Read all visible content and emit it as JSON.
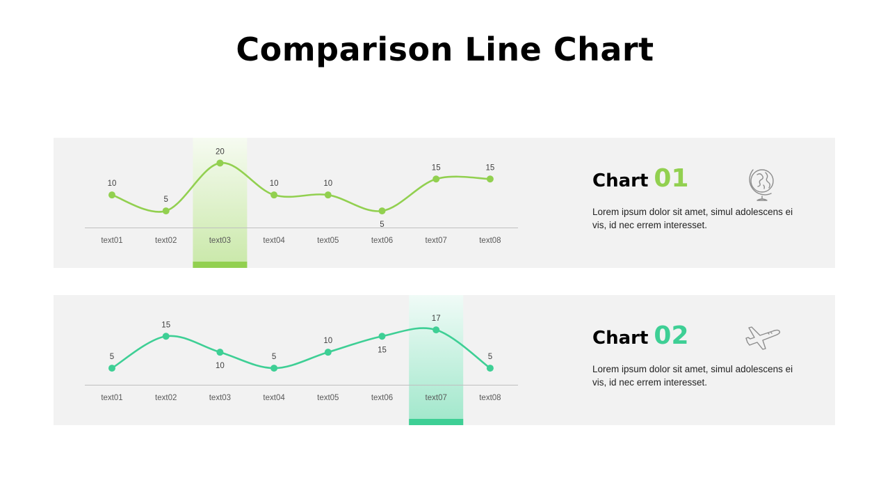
{
  "page": {
    "title": "Comparison Line Chart"
  },
  "chart_data": [
    {
      "type": "line",
      "categories": [
        "text01",
        "text02",
        "text03",
        "text04",
        "text05",
        "text06",
        "text07",
        "text08"
      ],
      "series": [
        {
          "values": [
            10,
            5,
            20,
            10,
            10,
            5,
            15,
            15
          ]
        }
      ],
      "data_labels": [
        "10",
        "5",
        "20",
        "10",
        "10",
        "5",
        "15",
        "15"
      ],
      "highlight_category": "text03",
      "color": "#92d050",
      "ylim": [
        0,
        24
      ],
      "grid": false,
      "heading": "Chart",
      "number": "01",
      "description": "Lorem ipsum dolor sit amet, simul adolescens ei vis, id nec errem interesset.",
      "icon": "globe-icon"
    },
    {
      "type": "line",
      "categories": [
        "text01",
        "text02",
        "text03",
        "text04",
        "text05",
        "text06",
        "text07",
        "text08"
      ],
      "series": [
        {
          "values": [
            5,
            15,
            10,
            5,
            10,
            15,
            17,
            5
          ]
        }
      ],
      "data_labels": [
        "5",
        "15",
        "10",
        "5",
        "10",
        "15",
        "17",
        "5"
      ],
      "highlight_category": "text07",
      "color": "#3ecf95",
      "ylim": [
        0,
        24
      ],
      "grid": false,
      "heading": "Chart",
      "number": "02",
      "description": "Lorem ipsum dolor sit amet, simul adolescens ei vis, id nec errem interesset.",
      "icon": "airplane-icon"
    }
  ]
}
